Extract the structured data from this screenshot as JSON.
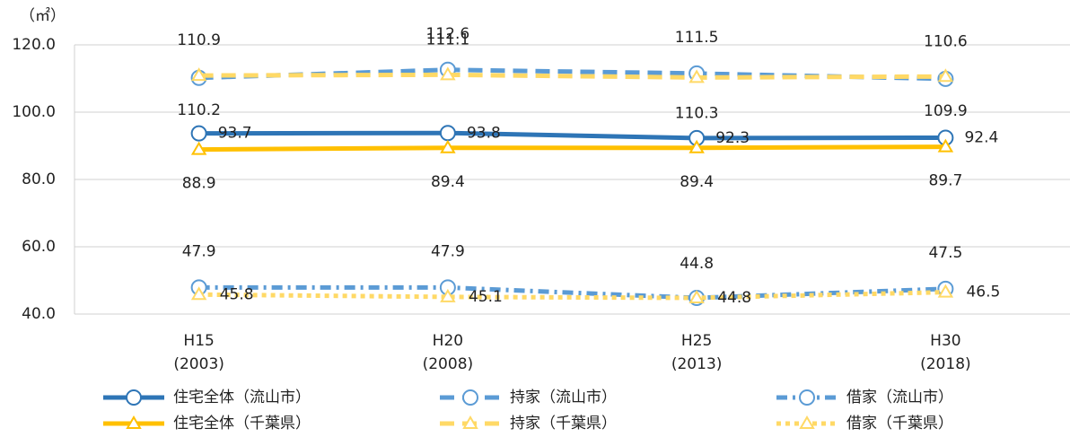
{
  "chart_data": {
    "type": "line",
    "y_axis_label": "（㎡）",
    "categories": [
      "H15\n(2003)",
      "H20\n(2008)",
      "H25\n(2013)",
      "H30\n(2018)"
    ],
    "ylim": [
      40,
      120
    ],
    "yticks": [
      {
        "value": 40,
        "label": "40.0"
      },
      {
        "value": 60,
        "label": "60.0"
      },
      {
        "value": 80,
        "label": "80.0"
      },
      {
        "value": 100,
        "label": "100.0"
      },
      {
        "value": 120,
        "label": "120.0"
      }
    ],
    "grid": true,
    "series": [
      {
        "name": "住宅全体（流山市）",
        "color": "#2e75b6",
        "label_color": "#2e86c1",
        "dash": "solid",
        "marker": "circle",
        "values": [
          93.7,
          93.8,
          92.3,
          92.4
        ]
      },
      {
        "name": "持家（流山市）",
        "color": "#5b9bd5",
        "label_color": "#2e86c1",
        "dash": "dashed",
        "marker": "circle",
        "values": [
          110.2,
          112.6,
          111.5,
          109.9
        ]
      },
      {
        "name": "借家（流山市）",
        "color": "#5b9bd5",
        "label_color": "#2e86c1",
        "dash": "dashdot",
        "marker": "circle",
        "values": [
          47.9,
          47.9,
          44.8,
          47.5
        ]
      },
      {
        "name": "住宅全体（千葉県）",
        "color": "#ffc000",
        "label_color": "#c8a02a",
        "dash": "solid",
        "marker": "triangle",
        "values": [
          88.9,
          89.4,
          89.4,
          89.7
        ]
      },
      {
        "name": "持家（千葉県）",
        "color": "#ffd966",
        "label_color": "#c8a02a",
        "dash": "dashed",
        "marker": "triangle",
        "values": [
          110.9,
          111.1,
          110.3,
          110.6
        ]
      },
      {
        "name": "借家（千葉県）",
        "color": "#ffd966",
        "label_color": "#c8a02a",
        "dash": "dotted",
        "marker": "triangle",
        "values": [
          45.8,
          45.1,
          44.8,
          46.5
        ]
      }
    ]
  }
}
